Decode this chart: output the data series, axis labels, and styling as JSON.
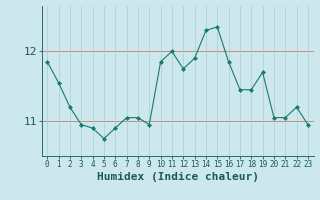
{
  "x": [
    0,
    1,
    2,
    3,
    4,
    5,
    6,
    7,
    8,
    9,
    10,
    11,
    12,
    13,
    14,
    15,
    16,
    17,
    18,
    19,
    20,
    21,
    22,
    23
  ],
  "y": [
    11.85,
    11.55,
    11.2,
    10.95,
    10.9,
    10.75,
    10.9,
    11.05,
    11.05,
    10.95,
    11.85,
    12.0,
    11.75,
    11.9,
    12.3,
    12.35,
    11.85,
    11.45,
    11.45,
    11.7,
    11.05,
    11.05,
    11.2,
    10.95
  ],
  "line_color": "#1a7a6e",
  "marker_color": "#1a7a6e",
  "bg_color": "#cce8ec",
  "grid_color": "#aacdd4",
  "axis_color": "#2a6a6a",
  "xlabel": "Humidex (Indice chaleur)",
  "yticks": [
    11,
    12
  ],
  "ylim": [
    10.5,
    12.65
  ],
  "xlim": [
    -0.5,
    23.5
  ],
  "hline_y": [
    11,
    12
  ],
  "hline_color": "#cc8888",
  "font_color": "#1a5a5a",
  "tick_fontsize": 7,
  "label_fontsize": 8
}
